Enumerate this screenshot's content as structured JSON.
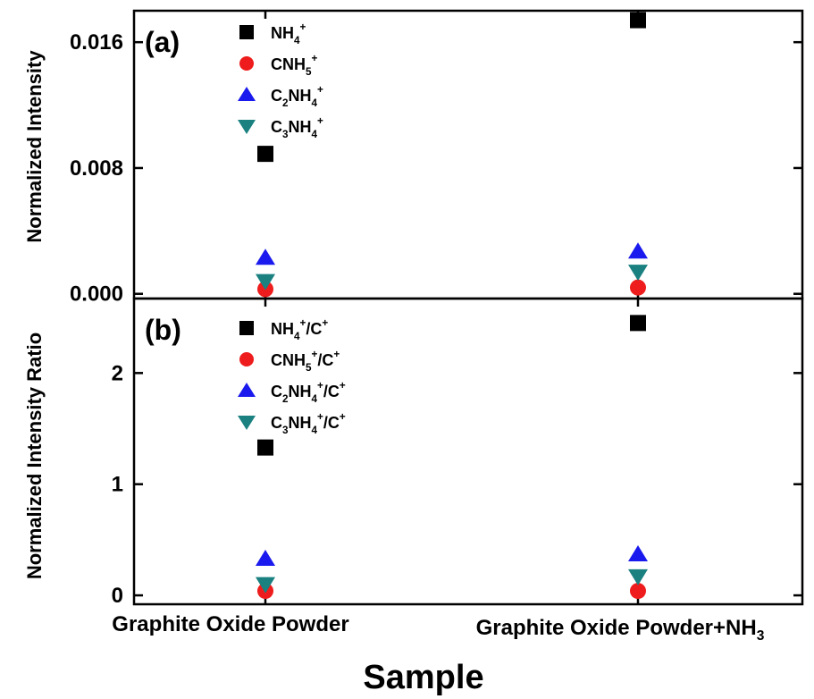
{
  "chart_data": [
    {
      "type": "scatter",
      "panel_label": "(a)",
      "ylabel": "Normalized Intensity",
      "xlabel": "",
      "categories": [
        "Graphite Oxide Powder",
        "Graphite Oxide Powder+NH3"
      ],
      "ylim": [
        -0.0003,
        0.018
      ],
      "yticks": [
        "0.000",
        "0.008",
        "0.016"
      ],
      "legend_position": "top-left",
      "series": [
        {
          "name": "NH4+",
          "legend": {
            "parts": [
              [
                "NH",
                ""
              ],
              [
                "4",
                "sub"
              ],
              [
                "+",
                "sup"
              ]
            ]
          },
          "marker": "square",
          "color": "#000000",
          "values": [
            0.0089,
            0.0174
          ]
        },
        {
          "name": "CNH5+",
          "legend": {
            "parts": [
              [
                "CNH",
                ""
              ],
              [
                "5",
                "sub"
              ],
              [
                "+",
                "sup"
              ]
            ]
          },
          "marker": "circle",
          "color": "#ee1c1c",
          "values": [
            0.0003,
            0.0004
          ]
        },
        {
          "name": "C2NH4+",
          "legend": {
            "parts": [
              [
                "C",
                ""
              ],
              [
                "2",
                "sub"
              ],
              [
                "NH",
                ""
              ],
              [
                "4",
                "sub"
              ],
              [
                "+",
                "sup"
              ]
            ]
          },
          "marker": "triangle-up",
          "color": "#1a1aee",
          "values": [
            0.0023,
            0.0027
          ]
        },
        {
          "name": "C3NH4+",
          "legend": {
            "parts": [
              [
                "C",
                ""
              ],
              [
                "3",
                "sub"
              ],
              [
                "NH",
                ""
              ],
              [
                "4",
                "sub"
              ],
              [
                "+",
                "sup"
              ]
            ]
          },
          "marker": "triangle-down",
          "color": "#1a8080",
          "values": [
            0.0008,
            0.0014
          ]
        }
      ]
    },
    {
      "type": "scatter",
      "panel_label": "(b)",
      "ylabel": "Normalized Intensity Ratio",
      "xlabel": "Sample",
      "categories": [
        "Graphite Oxide Powder",
        "Graphite Oxide Powder+NH3"
      ],
      "category_labels": [
        {
          "parts": [
            [
              "Graphite Oxide Powder",
              ""
            ]
          ]
        },
        {
          "parts": [
            [
              "Graphite Oxide Powder+NH",
              ""
            ],
            [
              "3",
              "sub"
            ]
          ]
        }
      ],
      "ylim": [
        -0.08,
        2.67
      ],
      "yticks": [
        "0",
        "1",
        "2"
      ],
      "legend_position": "top-left",
      "series": [
        {
          "name": "NH4+/C+",
          "legend": {
            "parts": [
              [
                "NH",
                ""
              ],
              [
                "4",
                "sub"
              ],
              [
                "+",
                "sup"
              ],
              [
                "/C",
                ""
              ],
              [
                "+",
                "sup"
              ]
            ]
          },
          "marker": "square",
          "color": "#000000",
          "values": [
            1.33,
            2.45
          ]
        },
        {
          "name": "CNH5+/C+",
          "legend": {
            "parts": [
              [
                "CNH",
                ""
              ],
              [
                "5",
                "sub"
              ],
              [
                "+",
                "sup"
              ],
              [
                "/C",
                ""
              ],
              [
                "+",
                "sup"
              ]
            ]
          },
          "marker": "circle",
          "color": "#ee1c1c",
          "values": [
            0.04,
            0.04
          ]
        },
        {
          "name": "C2NH4+/C+",
          "legend": {
            "parts": [
              [
                "C",
                ""
              ],
              [
                "2",
                "sub"
              ],
              [
                "NH",
                ""
              ],
              [
                "4",
                "sub"
              ],
              [
                "+",
                "sup"
              ],
              [
                "/C",
                ""
              ],
              [
                "+",
                "sup"
              ]
            ]
          },
          "marker": "triangle-up",
          "color": "#1a1aee",
          "values": [
            0.33,
            0.37
          ]
        },
        {
          "name": "C3NH4+/C+",
          "legend": {
            "parts": [
              [
                "C",
                ""
              ],
              [
                "3",
                "sub"
              ],
              [
                "NH",
                ""
              ],
              [
                "4",
                "sub"
              ],
              [
                "+",
                "sup"
              ],
              [
                "/C",
                ""
              ],
              [
                "+",
                "sup"
              ]
            ]
          },
          "marker": "triangle-down",
          "color": "#1a8080",
          "values": [
            0.1,
            0.17
          ]
        }
      ]
    }
  ]
}
